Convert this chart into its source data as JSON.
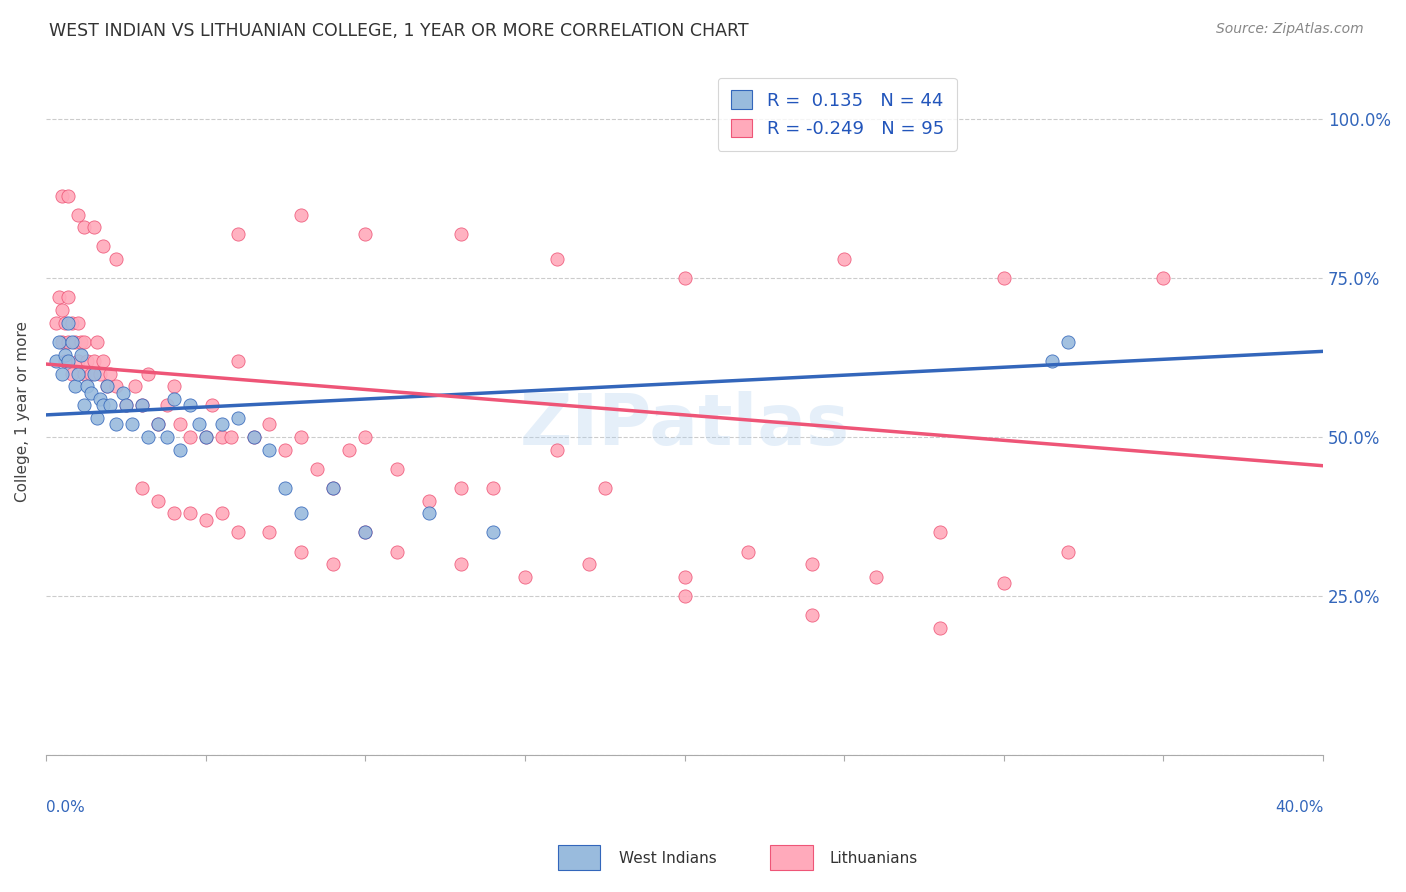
{
  "title": "WEST INDIAN VS LITHUANIAN COLLEGE, 1 YEAR OR MORE CORRELATION CHART",
  "source": "Source: ZipAtlas.com",
  "ylabel": "College, 1 year or more",
  "ytick_vals": [
    0.0,
    0.25,
    0.5,
    0.75,
    1.0
  ],
  "ytick_labels": [
    "",
    "25.0%",
    "50.0%",
    "75.0%",
    "100.0%"
  ],
  "xlim": [
    0.0,
    0.4
  ],
  "ylim": [
    0.0,
    1.08
  ],
  "color_blue": "#99BBDD",
  "color_pink": "#FFAABB",
  "color_blue_line": "#3366BB",
  "color_pink_line": "#EE5577",
  "trendline_blue": [
    [
      0.0,
      0.535
    ],
    [
      0.4,
      0.635
    ]
  ],
  "trendline_pink": [
    [
      0.0,
      0.615
    ],
    [
      0.4,
      0.455
    ]
  ],
  "west_indians_x": [
    0.003,
    0.004,
    0.005,
    0.006,
    0.007,
    0.007,
    0.008,
    0.009,
    0.01,
    0.011,
    0.012,
    0.013,
    0.014,
    0.015,
    0.016,
    0.017,
    0.018,
    0.019,
    0.02,
    0.022,
    0.024,
    0.025,
    0.027,
    0.03,
    0.032,
    0.035,
    0.038,
    0.04,
    0.042,
    0.045,
    0.048,
    0.05,
    0.055,
    0.06,
    0.065,
    0.07,
    0.075,
    0.08,
    0.09,
    0.1,
    0.12,
    0.14,
    0.315,
    0.32
  ],
  "west_indians_y": [
    0.62,
    0.65,
    0.6,
    0.63,
    0.68,
    0.62,
    0.65,
    0.58,
    0.6,
    0.63,
    0.55,
    0.58,
    0.57,
    0.6,
    0.53,
    0.56,
    0.55,
    0.58,
    0.55,
    0.52,
    0.57,
    0.55,
    0.52,
    0.55,
    0.5,
    0.52,
    0.5,
    0.56,
    0.48,
    0.55,
    0.52,
    0.5,
    0.52,
    0.53,
    0.5,
    0.48,
    0.42,
    0.38,
    0.42,
    0.35,
    0.38,
    0.35,
    0.62,
    0.65
  ],
  "lithuanians_x": [
    0.003,
    0.004,
    0.005,
    0.005,
    0.006,
    0.006,
    0.007,
    0.007,
    0.008,
    0.008,
    0.009,
    0.01,
    0.01,
    0.011,
    0.012,
    0.012,
    0.013,
    0.014,
    0.015,
    0.016,
    0.017,
    0.018,
    0.019,
    0.02,
    0.022,
    0.025,
    0.028,
    0.03,
    0.032,
    0.035,
    0.038,
    0.04,
    0.042,
    0.045,
    0.05,
    0.052,
    0.055,
    0.058,
    0.06,
    0.065,
    0.07,
    0.075,
    0.08,
    0.085,
    0.09,
    0.095,
    0.1,
    0.11,
    0.12,
    0.13,
    0.14,
    0.16,
    0.175,
    0.2,
    0.22,
    0.24,
    0.26,
    0.28,
    0.3,
    0.32,
    0.06,
    0.08,
    0.1,
    0.13,
    0.16,
    0.2,
    0.25,
    0.3,
    0.35,
    0.03,
    0.035,
    0.04,
    0.045,
    0.05,
    0.055,
    0.06,
    0.07,
    0.08,
    0.09,
    0.1,
    0.11,
    0.13,
    0.15,
    0.17,
    0.2,
    0.24,
    0.28,
    0.005,
    0.007,
    0.01,
    0.012,
    0.015,
    0.018,
    0.022
  ],
  "lithuanians_y": [
    0.68,
    0.72,
    0.65,
    0.7,
    0.68,
    0.62,
    0.65,
    0.72,
    0.68,
    0.6,
    0.65,
    0.62,
    0.68,
    0.65,
    0.6,
    0.65,
    0.62,
    0.6,
    0.62,
    0.65,
    0.6,
    0.62,
    0.58,
    0.6,
    0.58,
    0.55,
    0.58,
    0.55,
    0.6,
    0.52,
    0.55,
    0.58,
    0.52,
    0.5,
    0.5,
    0.55,
    0.5,
    0.5,
    0.62,
    0.5,
    0.52,
    0.48,
    0.5,
    0.45,
    0.42,
    0.48,
    0.5,
    0.45,
    0.4,
    0.42,
    0.42,
    0.48,
    0.42,
    0.28,
    0.32,
    0.3,
    0.28,
    0.35,
    0.27,
    0.32,
    0.82,
    0.85,
    0.82,
    0.82,
    0.78,
    0.75,
    0.78,
    0.75,
    0.75,
    0.42,
    0.4,
    0.38,
    0.38,
    0.37,
    0.38,
    0.35,
    0.35,
    0.32,
    0.3,
    0.35,
    0.32,
    0.3,
    0.28,
    0.3,
    0.25,
    0.22,
    0.2,
    0.88,
    0.88,
    0.85,
    0.83,
    0.83,
    0.8,
    0.78
  ]
}
